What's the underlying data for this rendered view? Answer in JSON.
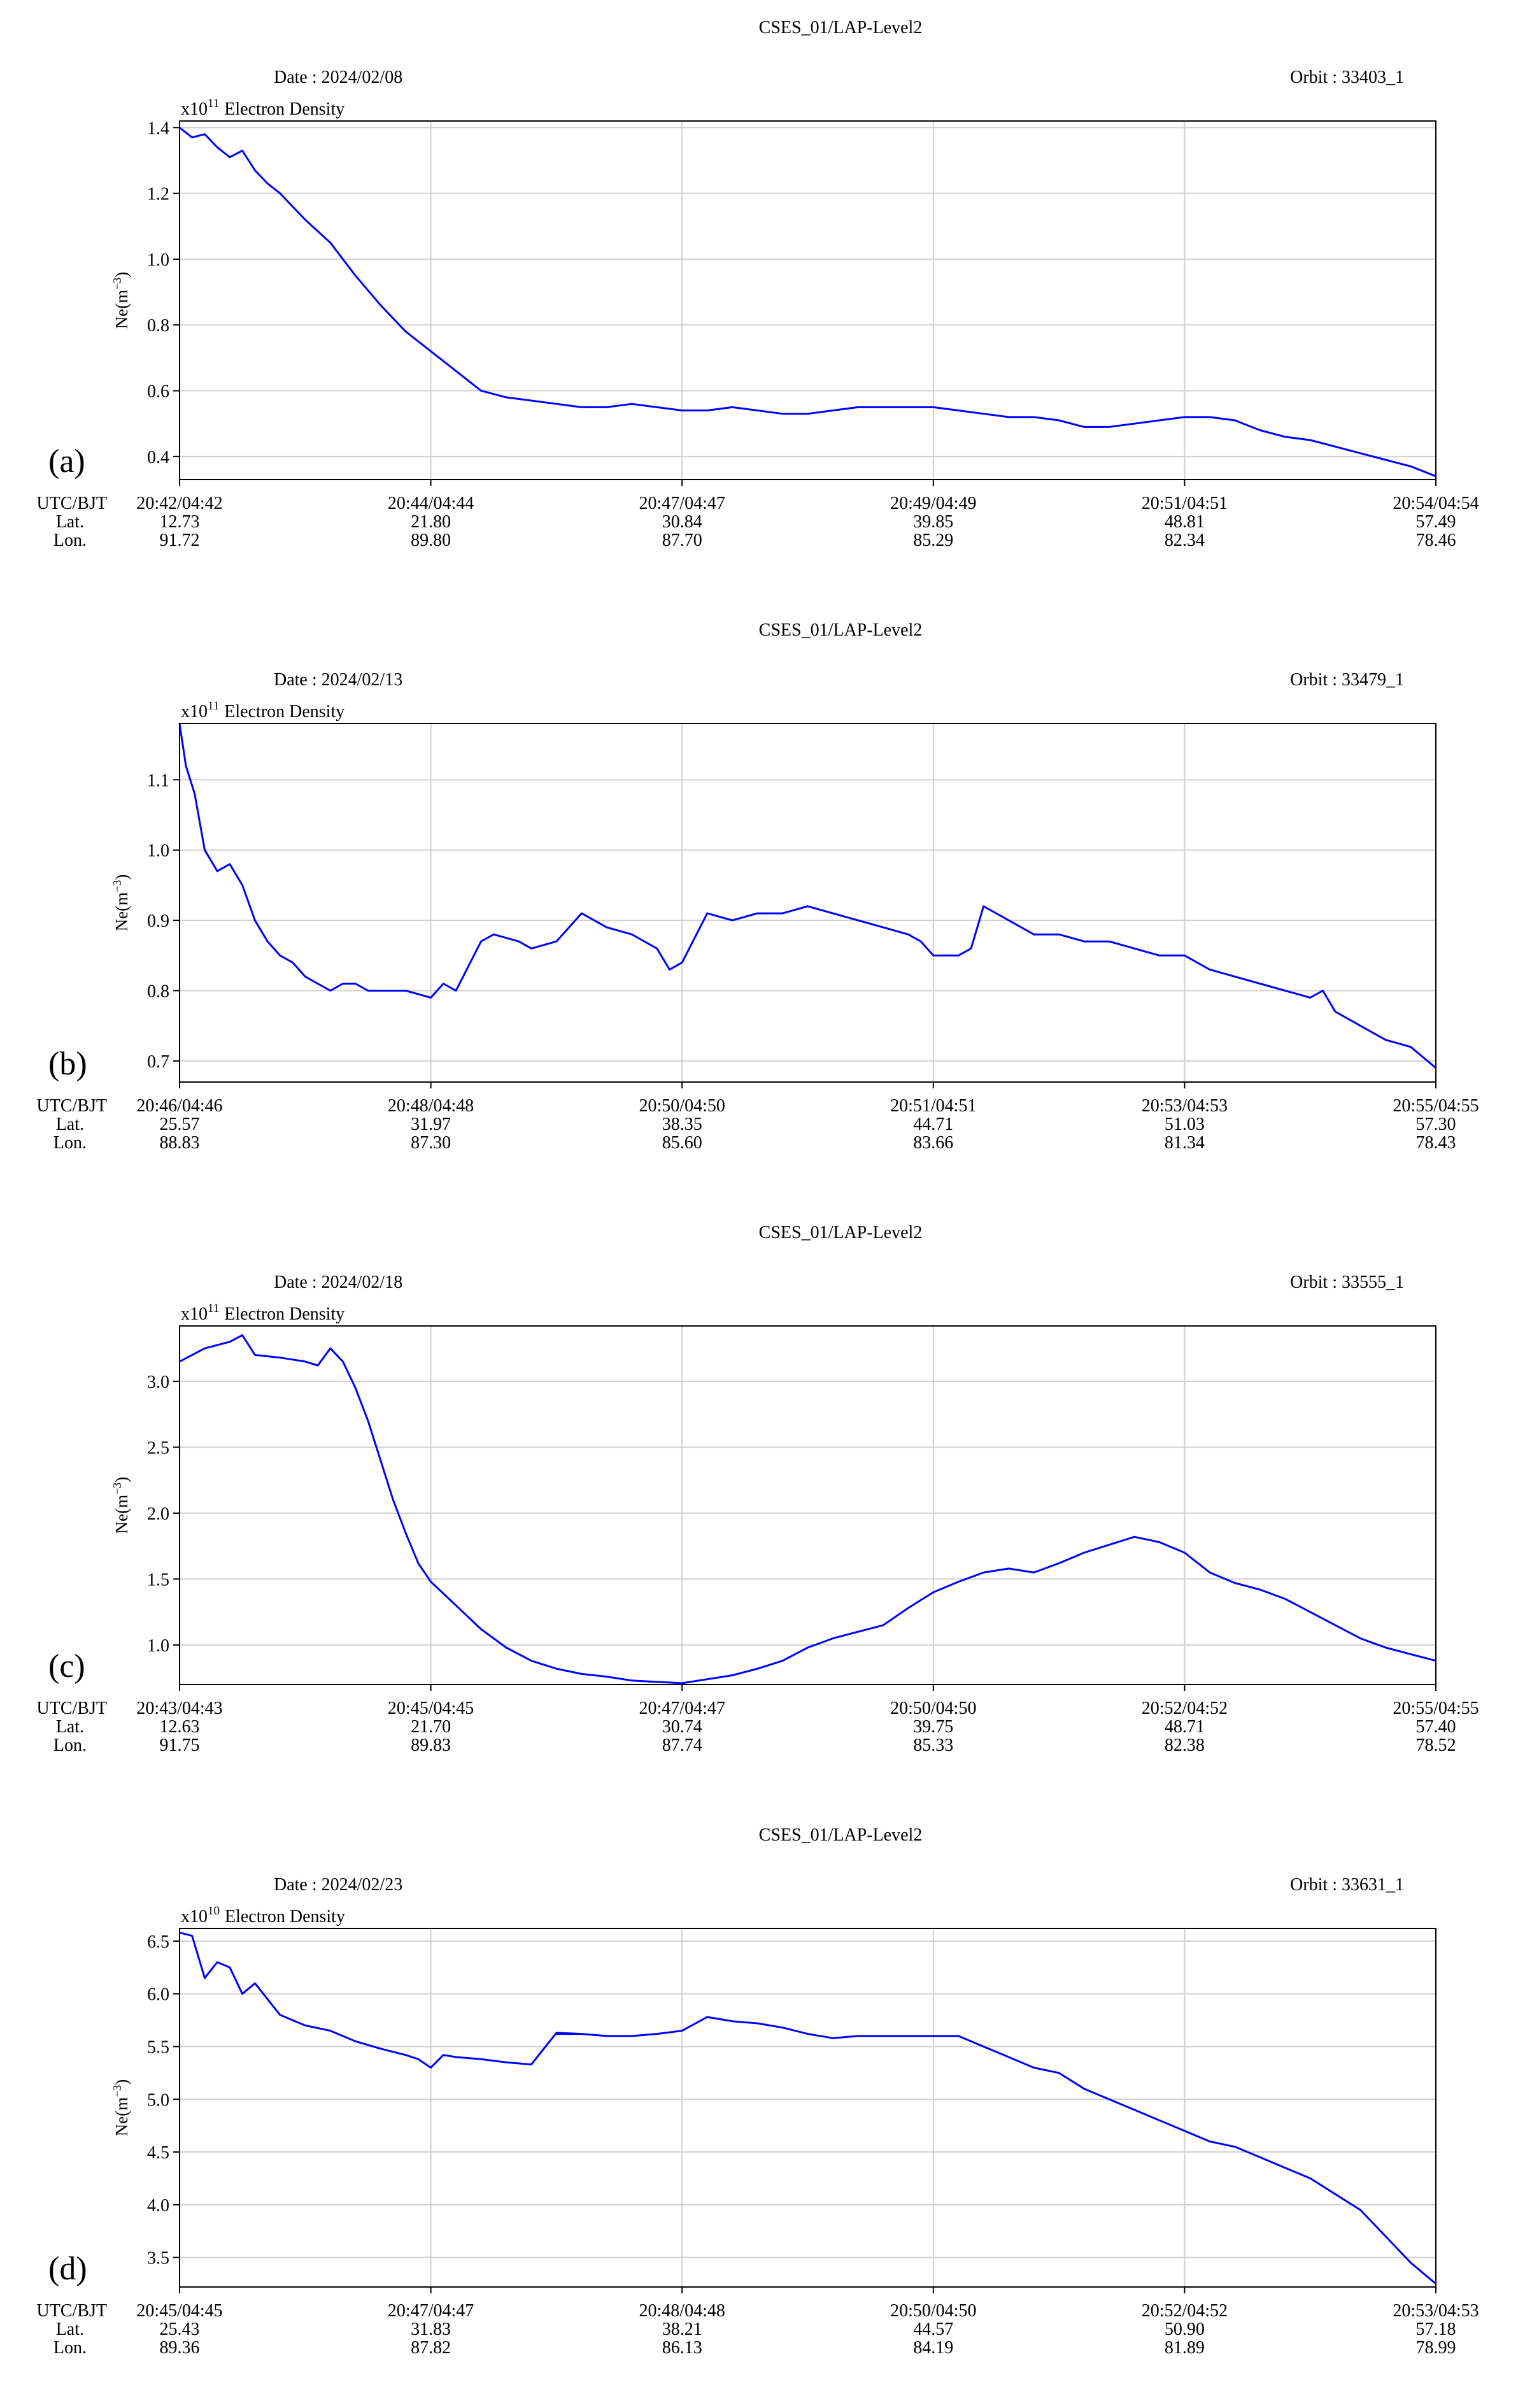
{
  "chart_data": [
    {
      "panel_label": "(a)",
      "type": "line",
      "title": "CSES_01/LAP-Level2",
      "date_text": "Date : 2024/02/08",
      "orbit_text": "Orbit : 33403_1",
      "multiplier_text": "x10",
      "multiplier_exp": "11",
      "series_label": "Electron Density",
      "ylabel": "Ne(m",
      "ylabel_exp": "−3",
      "ylabel_close": ")",
      "ylim": [
        0.33,
        1.42
      ],
      "yticks": [
        0.4,
        0.6,
        0.8,
        1.0,
        1.2,
        1.4
      ],
      "ytick_labels": [
        "0.4",
        "0.6",
        "0.8",
        "1.0",
        "1.2",
        "1.4"
      ],
      "row_headers": [
        "UTC/BJT",
        "Lat.",
        "Lon."
      ],
      "xtick_pos": [
        0,
        0.2,
        0.4,
        0.6,
        0.8,
        1.0
      ],
      "xticks": [
        {
          "time": "20:42/04:42",
          "lat": "12.73",
          "lon": "91.72"
        },
        {
          "time": "20:44/04:44",
          "lat": "21.80",
          "lon": "89.80"
        },
        {
          "time": "20:47/04:47",
          "lat": "30.84",
          "lon": "87.70"
        },
        {
          "time": "20:49/04:49",
          "lat": "39.85",
          "lon": "85.29"
        },
        {
          "time": "20:51/04:51",
          "lat": "48.81",
          "lon": "82.34"
        },
        {
          "time": "20:54/04:54",
          "lat": "57.49",
          "lon": "78.46"
        }
      ],
      "x": [
        0,
        0.01,
        0.02,
        0.03,
        0.04,
        0.05,
        0.06,
        0.07,
        0.08,
        0.09,
        0.1,
        0.12,
        0.14,
        0.16,
        0.18,
        0.2,
        0.22,
        0.24,
        0.26,
        0.28,
        0.3,
        0.32,
        0.34,
        0.36,
        0.38,
        0.4,
        0.42,
        0.44,
        0.46,
        0.48,
        0.5,
        0.52,
        0.54,
        0.56,
        0.58,
        0.6,
        0.62,
        0.64,
        0.66,
        0.68,
        0.7,
        0.72,
        0.74,
        0.76,
        0.78,
        0.8,
        0.82,
        0.84,
        0.86,
        0.88,
        0.9,
        0.92,
        0.94,
        0.96,
        0.98,
        1.0
      ],
      "y": [
        1.4,
        1.37,
        1.38,
        1.34,
        1.31,
        1.33,
        1.27,
        1.23,
        1.2,
        1.16,
        1.12,
        1.05,
        0.95,
        0.86,
        0.78,
        0.72,
        0.66,
        0.6,
        0.58,
        0.57,
        0.56,
        0.55,
        0.55,
        0.56,
        0.55,
        0.54,
        0.54,
        0.55,
        0.54,
        0.53,
        0.53,
        0.54,
        0.55,
        0.55,
        0.55,
        0.55,
        0.54,
        0.53,
        0.52,
        0.52,
        0.51,
        0.49,
        0.49,
        0.5,
        0.51,
        0.52,
        0.52,
        0.51,
        0.48,
        0.46,
        0.45,
        0.43,
        0.41,
        0.39,
        0.37,
        0.34
      ]
    },
    {
      "panel_label": "(b)",
      "type": "line",
      "title": "CSES_01/LAP-Level2",
      "date_text": "Date : 2024/02/13",
      "orbit_text": "Orbit : 33479_1",
      "multiplier_text": "x10",
      "multiplier_exp": "11",
      "series_label": "Electron Density",
      "ylabel": "Ne(m",
      "ylabel_exp": "−3",
      "ylabel_close": ")",
      "ylim": [
        0.67,
        1.18
      ],
      "yticks": [
        0.7,
        0.8,
        0.9,
        1.0,
        1.1
      ],
      "ytick_labels": [
        "0.7",
        "0.8",
        "0.9",
        "1.0",
        "1.1"
      ],
      "row_headers": [
        "UTC/BJT",
        "Lat.",
        "Lon."
      ],
      "xtick_pos": [
        0,
        0.2,
        0.4,
        0.6,
        0.8,
        1.0
      ],
      "xticks": [
        {
          "time": "20:46/04:46",
          "lat": "25.57",
          "lon": "88.83"
        },
        {
          "time": "20:48/04:48",
          "lat": "31.97",
          "lon": "87.30"
        },
        {
          "time": "20:50/04:50",
          "lat": "38.35",
          "lon": "85.60"
        },
        {
          "time": "20:51/04:51",
          "lat": "44.71",
          "lon": "83.66"
        },
        {
          "time": "20:53/04:53",
          "lat": "51.03",
          "lon": "81.34"
        },
        {
          "time": "20:55/04:55",
          "lat": "57.30",
          "lon": "78.43"
        }
      ],
      "x": [
        0,
        0.005,
        0.012,
        0.02,
        0.03,
        0.04,
        0.05,
        0.06,
        0.07,
        0.08,
        0.09,
        0.1,
        0.11,
        0.12,
        0.13,
        0.14,
        0.15,
        0.16,
        0.18,
        0.2,
        0.21,
        0.22,
        0.24,
        0.25,
        0.27,
        0.28,
        0.3,
        0.32,
        0.34,
        0.36,
        0.38,
        0.39,
        0.4,
        0.42,
        0.44,
        0.46,
        0.48,
        0.5,
        0.52,
        0.54,
        0.56,
        0.58,
        0.59,
        0.6,
        0.62,
        0.63,
        0.64,
        0.66,
        0.68,
        0.7,
        0.72,
        0.74,
        0.76,
        0.78,
        0.8,
        0.82,
        0.84,
        0.86,
        0.88,
        0.9,
        0.91,
        0.92,
        0.94,
        0.96,
        0.98,
        1.0
      ],
      "y": [
        1.18,
        1.12,
        1.08,
        1.0,
        0.97,
        0.98,
        0.95,
        0.9,
        0.87,
        0.85,
        0.84,
        0.82,
        0.81,
        0.8,
        0.81,
        0.81,
        0.8,
        0.8,
        0.8,
        0.79,
        0.81,
        0.8,
        0.87,
        0.88,
        0.87,
        0.86,
        0.87,
        0.91,
        0.89,
        0.88,
        0.86,
        0.83,
        0.84,
        0.91,
        0.9,
        0.91,
        0.91,
        0.92,
        0.91,
        0.9,
        0.89,
        0.88,
        0.87,
        0.85,
        0.85,
        0.86,
        0.92,
        0.9,
        0.88,
        0.88,
        0.87,
        0.87,
        0.86,
        0.85,
        0.85,
        0.83,
        0.82,
        0.81,
        0.8,
        0.79,
        0.8,
        0.77,
        0.75,
        0.73,
        0.72,
        0.69
      ]
    },
    {
      "panel_label": "(c)",
      "type": "line",
      "title": "CSES_01/LAP-Level2",
      "date_text": "Date : 2024/02/18",
      "orbit_text": "Orbit : 33555_1",
      "multiplier_text": "x10",
      "multiplier_exp": "11",
      "series_label": "Electron Density",
      "ylabel": "Ne(m",
      "ylabel_exp": "−3",
      "ylabel_close": ")",
      "ylim": [
        0.7,
        3.42
      ],
      "yticks": [
        1.0,
        1.5,
        2.0,
        2.5,
        3.0
      ],
      "ytick_labels": [
        "1.0",
        "1.5",
        "2.0",
        "2.5",
        "3.0"
      ],
      "row_headers": [
        "UTC/BJT",
        "Lat.",
        "Lon."
      ],
      "xtick_pos": [
        0,
        0.2,
        0.4,
        0.6,
        0.8,
        1.0
      ],
      "xticks": [
        {
          "time": "20:43/04:43",
          "lat": "12.63",
          "lon": "91.75"
        },
        {
          "time": "20:45/04:45",
          "lat": "21.70",
          "lon": "89.83"
        },
        {
          "time": "20:47/04:47",
          "lat": "30.74",
          "lon": "87.74"
        },
        {
          "time": "20:50/04:50",
          "lat": "39.75",
          "lon": "85.33"
        },
        {
          "time": "20:52/04:52",
          "lat": "48.71",
          "lon": "82.38"
        },
        {
          "time": "20:55/04:55",
          "lat": "57.40",
          "lon": "78.52"
        }
      ],
      "x": [
        0,
        0.02,
        0.04,
        0.05,
        0.06,
        0.08,
        0.1,
        0.11,
        0.12,
        0.13,
        0.14,
        0.15,
        0.16,
        0.17,
        0.18,
        0.19,
        0.2,
        0.22,
        0.24,
        0.26,
        0.28,
        0.3,
        0.32,
        0.34,
        0.36,
        0.38,
        0.4,
        0.42,
        0.44,
        0.46,
        0.48,
        0.5,
        0.52,
        0.54,
        0.56,
        0.58,
        0.6,
        0.62,
        0.64,
        0.66,
        0.68,
        0.7,
        0.72,
        0.74,
        0.76,
        0.77,
        0.78,
        0.8,
        0.82,
        0.84,
        0.86,
        0.88,
        0.9,
        0.92,
        0.94,
        0.96,
        0.98,
        1.0
      ],
      "y": [
        3.15,
        3.25,
        3.3,
        3.35,
        3.2,
        3.18,
        3.15,
        3.12,
        3.25,
        3.15,
        2.95,
        2.7,
        2.4,
        2.1,
        1.85,
        1.62,
        1.48,
        1.3,
        1.12,
        0.98,
        0.88,
        0.82,
        0.78,
        0.76,
        0.73,
        0.72,
        0.71,
        0.74,
        0.77,
        0.82,
        0.88,
        0.98,
        1.05,
        1.1,
        1.15,
        1.28,
        1.4,
        1.48,
        1.55,
        1.58,
        1.55,
        1.62,
        1.7,
        1.76,
        1.82,
        1.8,
        1.78,
        1.7,
        1.55,
        1.47,
        1.42,
        1.35,
        1.25,
        1.15,
        1.05,
        0.98,
        0.93,
        0.88
      ]
    },
    {
      "panel_label": "(d)",
      "type": "line",
      "title": "CSES_01/LAP-Level2",
      "date_text": "Date : 2024/02/23",
      "orbit_text": "Orbit : 33631_1",
      "multiplier_text": "x10",
      "multiplier_exp": "10",
      "series_label": "Electron Density",
      "ylabel": "Ne(m",
      "ylabel_exp": "−3",
      "ylabel_close": ")",
      "ylim": [
        3.22,
        6.62
      ],
      "yticks": [
        3.5,
        4.0,
        4.5,
        5.0,
        5.5,
        6.0,
        6.5
      ],
      "ytick_labels": [
        "3.5",
        "4.0",
        "4.5",
        "5.0",
        "5.5",
        "6.0",
        "6.5"
      ],
      "row_headers": [
        "UTC/BJT",
        "Lat.",
        "Lon."
      ],
      "xtick_pos": [
        0,
        0.2,
        0.4,
        0.6,
        0.8,
        1.0
      ],
      "xticks": [
        {
          "time": "20:45/04:45",
          "lat": "25.43",
          "lon": "89.36"
        },
        {
          "time": "20:47/04:47",
          "lat": "31.83",
          "lon": "87.82"
        },
        {
          "time": "20:48/04:48",
          "lat": "38.21",
          "lon": "86.13"
        },
        {
          "time": "20:50/04:50",
          "lat": "44.57",
          "lon": "84.19"
        },
        {
          "time": "20:52/04:52",
          "lat": "50.90",
          "lon": "81.89"
        },
        {
          "time": "20:53/04:53",
          "lat": "57.18",
          "lon": "78.99"
        }
      ],
      "x": [
        0,
        0.01,
        0.02,
        0.03,
        0.04,
        0.05,
        0.06,
        0.07,
        0.08,
        0.09,
        0.1,
        0.12,
        0.14,
        0.16,
        0.18,
        0.19,
        0.2,
        0.21,
        0.22,
        0.24,
        0.26,
        0.28,
        0.3,
        0.32,
        0.3,
        0.3,
        0.32,
        0.34,
        0.36,
        0.38,
        0.4,
        0.42,
        0.44,
        0.46,
        0.48,
        0.5,
        0.52,
        0.54,
        0.56,
        0.58,
        0.6,
        0.62,
        0.64,
        0.66,
        0.68,
        0.7,
        0.72,
        0.74,
        0.76,
        0.77,
        0.78,
        0.8,
        0.82,
        0.84,
        0.86,
        0.88,
        0.9,
        0.92,
        0.94,
        0.96,
        0.98,
        1.0
      ],
      "y": [
        6.58,
        6.55,
        6.15,
        6.3,
        6.25,
        6.0,
        6.1,
        5.95,
        5.8,
        5.75,
        5.7,
        5.65,
        5.55,
        5.48,
        5.42,
        5.38,
        5.3,
        5.42,
        5.4,
        5.38,
        5.35,
        5.33,
        5.63,
        5.62,
        5.62,
        5.62,
        5.62,
        5.6,
        5.6,
        5.62,
        5.65,
        5.78,
        5.74,
        5.72,
        5.68,
        5.62,
        5.58,
        5.6,
        5.6,
        5.6,
        5.6,
        5.6,
        5.5,
        5.4,
        5.3,
        5.25,
        5.1,
        5.0,
        4.9,
        4.85,
        4.8,
        4.7,
        4.6,
        4.55,
        4.45,
        4.35,
        4.25,
        4.1,
        3.95,
        3.7,
        3.45,
        3.25
      ]
    }
  ]
}
